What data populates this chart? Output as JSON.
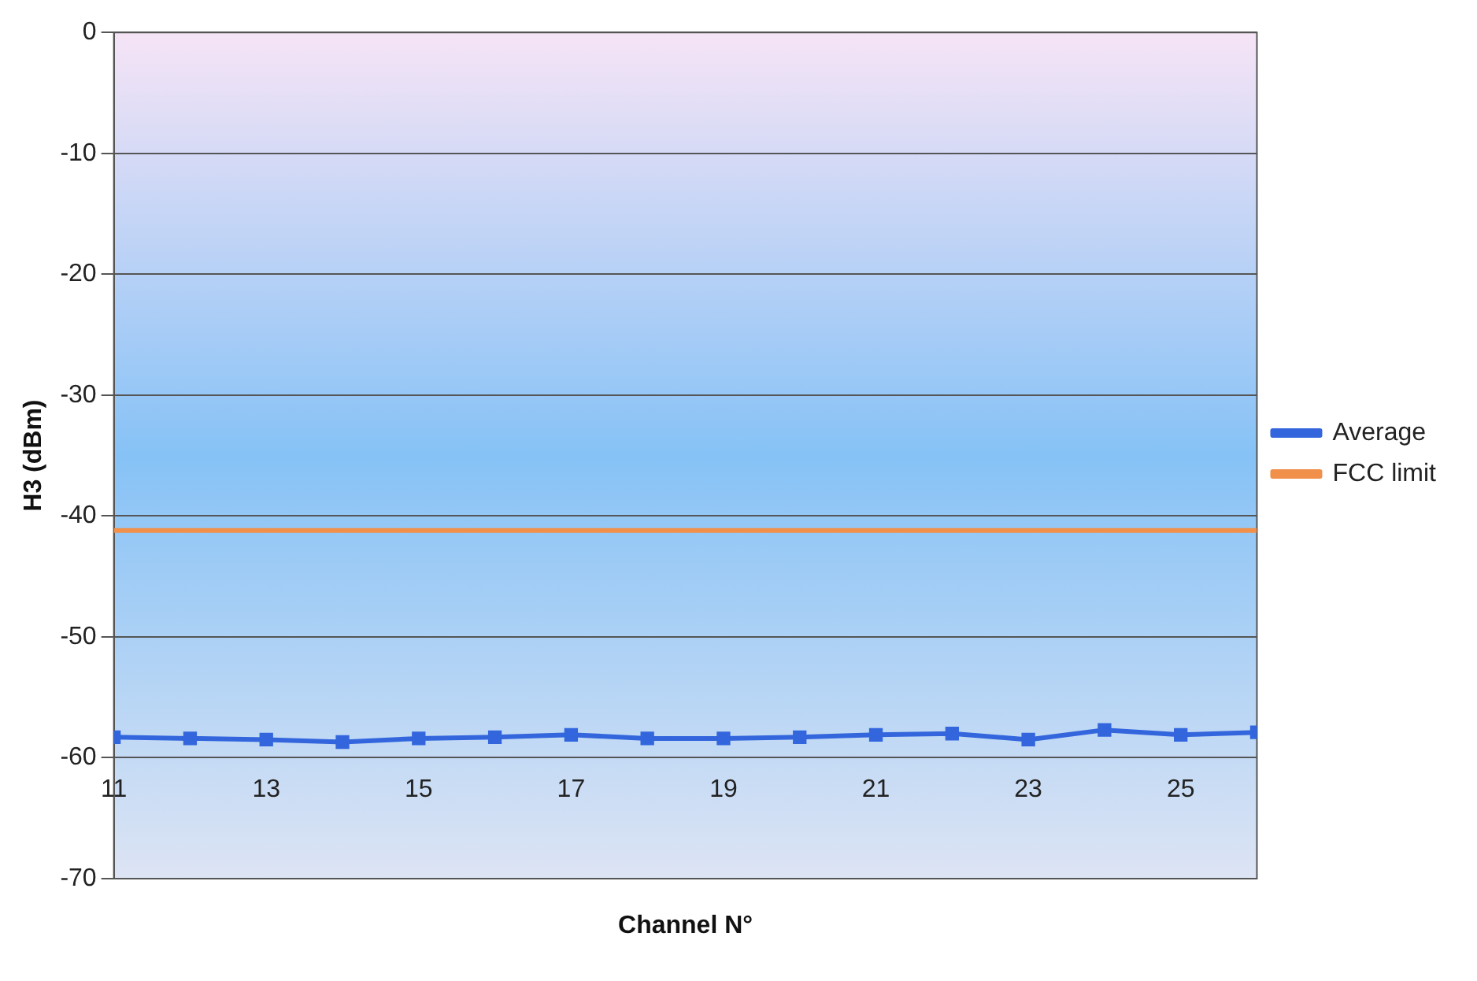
{
  "chart_data": {
    "type": "line",
    "xlabel": "Channel N°",
    "ylabel": "H3 (dBm)",
    "x": [
      11,
      12,
      13,
      14,
      15,
      16,
      17,
      18,
      19,
      20,
      21,
      22,
      23,
      24,
      25,
      26
    ],
    "series": [
      {
        "name": "Average",
        "color": "#3366dd",
        "marker": "square",
        "values": [
          -58.3,
          -58.4,
          -58.5,
          -58.7,
          -58.4,
          -58.3,
          -58.1,
          -58.4,
          -58.4,
          -58.3,
          -58.1,
          -58.0,
          -58.5,
          -57.7,
          -58.1,
          -57.9
        ]
      },
      {
        "name": "FCC limit",
        "color": "#f0904a",
        "marker": "none",
        "x": [
          11,
          26
        ],
        "values": [
          -41.2,
          -41.2
        ]
      }
    ],
    "xlim": [
      11,
      26
    ],
    "xticks": [
      11,
      13,
      15,
      17,
      19,
      21,
      23,
      25
    ],
    "ylim": [
      -70,
      0
    ],
    "yticks": [
      -70,
      -60,
      -50,
      -40,
      -30,
      -20,
      -10,
      0
    ],
    "grid": "y",
    "legend": "right"
  }
}
